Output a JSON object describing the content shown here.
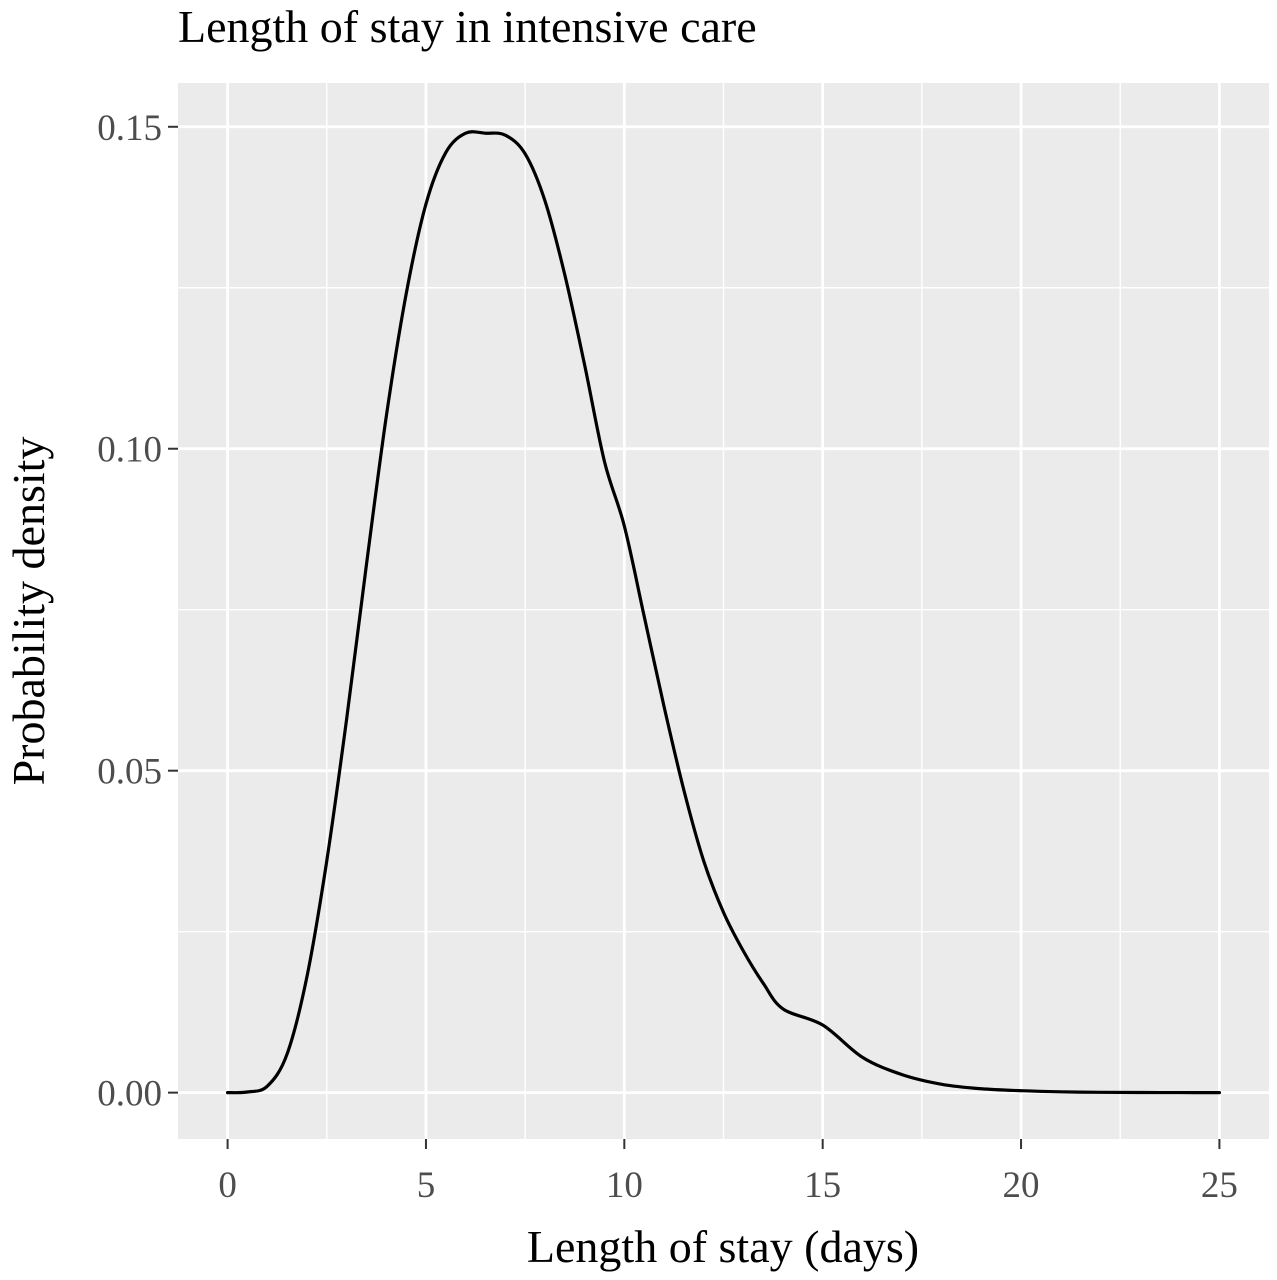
{
  "chart_data": {
    "type": "line",
    "title": "Length of stay in intensive care",
    "xlabel": "Length of stay (days)",
    "ylabel": "Probability density",
    "xlim": [
      -1.25,
      26.25
    ],
    "ylim": [
      -0.0072,
      0.1568
    ],
    "x_ticks": [
      0,
      5,
      10,
      15,
      20,
      25
    ],
    "x_tick_labels": [
      "0",
      "5",
      "10",
      "15",
      "20",
      "25"
    ],
    "y_ticks": [
      0,
      0.05,
      0.1,
      0.15
    ],
    "y_tick_labels": [
      "0.00",
      "0.05",
      "0.10",
      "0.15"
    ],
    "grid": true,
    "legend": "none",
    "series": [
      {
        "x": [
          0,
          0.5,
          1,
          1.5,
          2,
          2.5,
          3,
          3.5,
          4,
          4.5,
          5,
          5.5,
          6,
          6.5,
          7,
          7.5,
          8,
          8.5,
          9,
          9.5,
          10,
          10.5,
          11,
          11.5,
          12,
          12.5,
          13,
          13.5,
          14,
          15,
          16,
          17,
          18,
          19,
          20,
          21,
          22,
          23,
          24,
          25
        ],
        "y": [
          0,
          0.0001,
          0.001,
          0.006,
          0.018,
          0.036,
          0.058,
          0.082,
          0.105,
          0.124,
          0.138,
          0.146,
          0.149,
          0.149,
          0.1487,
          0.1458,
          0.1385,
          0.127,
          0.113,
          0.098,
          0.088,
          0.074,
          0.06,
          0.047,
          0.036,
          0.028,
          0.022,
          0.017,
          0.013,
          0.0105,
          0.0055,
          0.0028,
          0.0013,
          0.0006,
          0.0003,
          0.00013,
          5e-05,
          2e-05,
          1e-05,
          0
        ]
      }
    ]
  },
  "colors": {
    "panel_background": "#ebebeb",
    "grid_line": "#ffffff",
    "curve": "#000000",
    "tick_mark": "#333333",
    "tick_text": "#4d4d4d"
  }
}
